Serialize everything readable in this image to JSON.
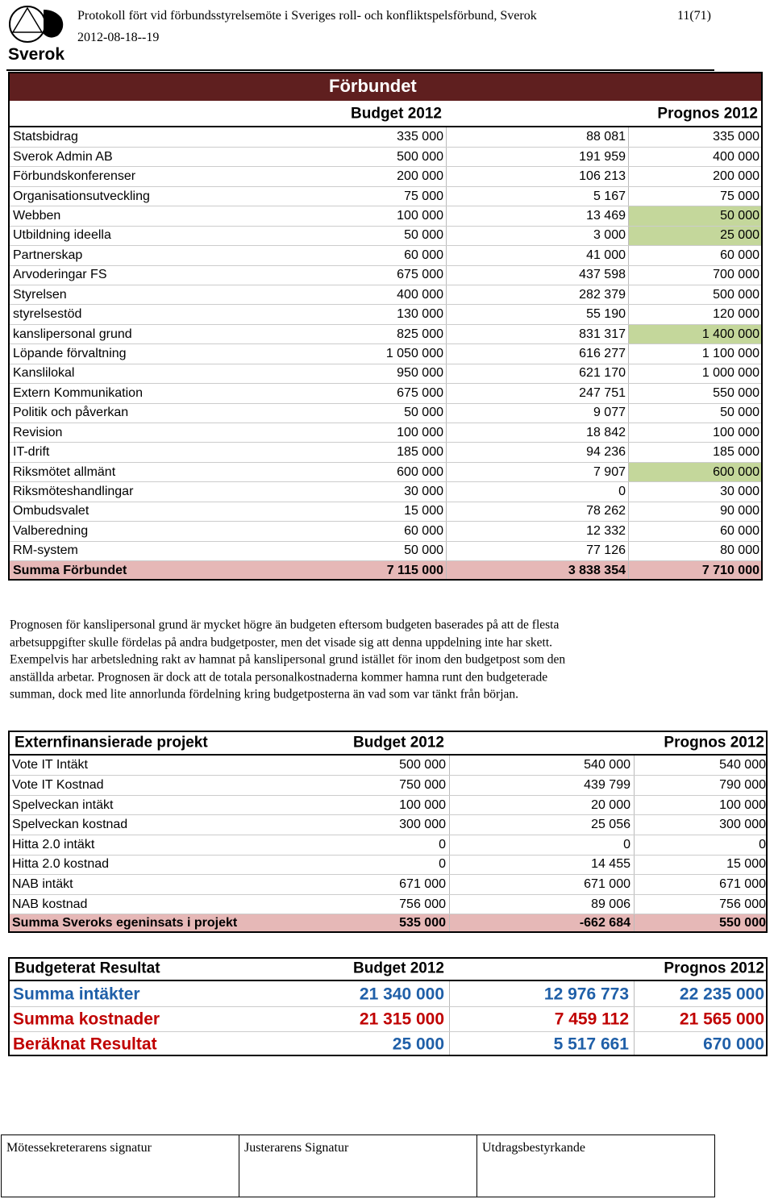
{
  "header": {
    "logo_text": "Sverok",
    "title": "Protokoll fört vid förbundsstyrelsemöte i Sveriges roll- och konfliktspelsförbund, Sverok",
    "date": "2012-08-18--19",
    "page": "11(71)"
  },
  "table1": {
    "title": "Förbundet",
    "header": {
      "budget": "Budget 2012",
      "prognos": "Prognos 2012"
    },
    "highlighted_rows": [
      4,
      5,
      10,
      17
    ],
    "rows": [
      [
        "Statsbidrag",
        "335 000",
        "88 081",
        "335 000"
      ],
      [
        "Sverok Admin AB",
        "500 000",
        "191 959",
        "400 000"
      ],
      [
        "Förbundskonferenser",
        "200 000",
        "106 213",
        "200 000"
      ],
      [
        "Organisationsutveckling",
        "75 000",
        "5 167",
        "75 000"
      ],
      [
        "Webben",
        "100 000",
        "13 469",
        "50 000"
      ],
      [
        "Utbildning ideella",
        "50 000",
        "3 000",
        "25 000"
      ],
      [
        "Partnerskap",
        "60 000",
        "41 000",
        "60 000"
      ],
      [
        "Arvoderingar FS",
        "675 000",
        "437 598",
        "700 000"
      ],
      [
        "Styrelsen",
        "400 000",
        "282 379",
        "500 000"
      ],
      [
        "styrelsestöd",
        "130 000",
        "55 190",
        "120 000"
      ],
      [
        "kanslipersonal grund",
        "825 000",
        "831 317",
        "1 400 000"
      ],
      [
        "Löpande förvaltning",
        "1 050 000",
        "616 277",
        "1 100 000"
      ],
      [
        "Kanslilokal",
        "950 000",
        "621 170",
        "1 000 000"
      ],
      [
        "Extern Kommunikation",
        "675 000",
        "247 751",
        "550 000"
      ],
      [
        "Politik och påverkan",
        "50 000",
        "9 077",
        "50 000"
      ],
      [
        "Revision",
        "100 000",
        "18 842",
        "100 000"
      ],
      [
        "IT-drift",
        "185 000",
        "94 236",
        "185 000"
      ],
      [
        "Riksmötet allmänt",
        "600 000",
        "7 907",
        "600 000"
      ],
      [
        "Riksmöteshandlingar",
        "30 000",
        "0",
        "30 000"
      ],
      [
        "Ombudsvalet",
        "15 000",
        "78 262",
        "90 000"
      ],
      [
        "Valberedning",
        "60 000",
        "12 332",
        "60 000"
      ],
      [
        "RM-system",
        "50 000",
        "77 126",
        "80 000"
      ]
    ],
    "total": [
      "Summa Förbundet",
      "7 115 000",
      "3 838 354",
      "7 710 000"
    ]
  },
  "paragraph": [
    "Prognosen för kanslipersonal grund är mycket högre än budgeten eftersom budgeten baserades på att de flesta",
    "arbetsuppgifter skulle fördelas på andra budgetposter, men det visade sig att denna uppdelning inte har skett.",
    "Exempelvis har arbetsledning rakt av hamnat på kanslipersonal grund istället för inom den budgetpost som den",
    "anställda arbetar. Prognosen är dock att de totala personalkostnaderna kommer hamna runt den budgeterade",
    "summan, dock med lite annorlunda fördelning kring budgetposterna än vad som var tänkt från början."
  ],
  "table2": {
    "header": {
      "label": "Externfinansierade projekt",
      "budget": "Budget 2012",
      "prognos": "Prognos 2012"
    },
    "rows": [
      [
        "Vote IT Intäkt",
        "500 000",
        "540 000",
        "540 000"
      ],
      [
        "Vote IT Kostnad",
        "750 000",
        "439 799",
        "790 000"
      ],
      [
        "Spelveckan intäkt",
        "100 000",
        "20 000",
        "100 000"
      ],
      [
        "Spelveckan kostnad",
        "300 000",
        "25 056",
        "300 000"
      ],
      [
        "Hitta 2.0 intäkt",
        "0",
        "0",
        "0"
      ],
      [
        "Hitta 2.0 kostnad",
        "0",
        "14 455",
        "15 000"
      ],
      [
        "NAB intäkt",
        "671 000",
        "671 000",
        "671 000"
      ],
      [
        "NAB kostnad",
        "756 000",
        "89 006",
        "756 000"
      ]
    ],
    "total": [
      "Summa Sveroks egeninsats i projekt",
      "535 000",
      "-662 684",
      "550 000"
    ]
  },
  "table3": {
    "header": {
      "label": "Budgeterat Resultat",
      "budget": "Budget 2012",
      "prognos": "Prognos 2012"
    },
    "rows": [
      [
        "Summa intäkter",
        "21 340 000",
        "12 976 773",
        "22 235 000"
      ],
      [
        "Summa kostnader",
        "21 315 000",
        "7 459 112",
        "21 565 000"
      ],
      [
        "Beräknat Resultat",
        "25 000",
        "5 517 661",
        "670 000"
      ]
    ]
  },
  "footer": [
    "Mötessekreterarens signatur",
    "Justerarens Signatur",
    "Utdragsbestyrkande"
  ]
}
